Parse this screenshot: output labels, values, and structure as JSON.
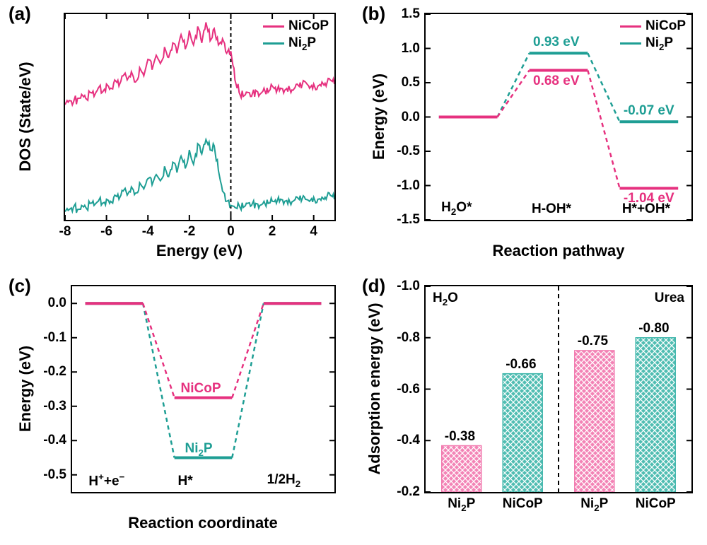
{
  "colors": {
    "nicop": "#e6317f",
    "ni2p": "#1e9e94",
    "axis": "#000000",
    "bg": "#ffffff",
    "nicop_fill": "#f27bb0",
    "ni2p_fill": "#44b8ad",
    "dashed": "#000000"
  },
  "fonts": {
    "panel_label_size": 26,
    "axis_title_size": 22,
    "tick_label_size": 19,
    "legend_size": 19,
    "value_label_size": 19
  },
  "panel_a": {
    "label": "(a)",
    "type": "line",
    "x_title": "Energy (eV)",
    "y_title": "DOS (State/eV)",
    "xlim": [
      -8,
      5
    ],
    "xticks": [
      -8,
      -6,
      -4,
      -2,
      0,
      2,
      4
    ],
    "fermi_line_x": 0,
    "legend": [
      {
        "label": "NiCoP",
        "color": "#e6317f"
      },
      {
        "label": "Ni₂P",
        "color": "#1e9e94"
      }
    ],
    "series": [
      {
        "name": "NiCoP",
        "color": "#e6317f",
        "baseline": 0.56,
        "x": [
          -8,
          -7.8,
          -7.6,
          -7.4,
          -7.2,
          -7,
          -6.8,
          -6.6,
          -6.4,
          -6.2,
          -6,
          -5.8,
          -5.6,
          -5.4,
          -5.2,
          -5,
          -4.8,
          -4.6,
          -4.4,
          -4.2,
          -4,
          -3.8,
          -3.6,
          -3.4,
          -3.2,
          -3,
          -2.8,
          -2.6,
          -2.4,
          -2.2,
          -2,
          -1.8,
          -1.6,
          -1.4,
          -1.2,
          -1,
          -0.8,
          -0.6,
          -0.4,
          -0.2,
          0,
          0.2,
          0.4,
          0.6,
          0.8,
          1,
          1.2,
          1.4,
          1.6,
          1.8,
          2,
          2.2,
          2.4,
          2.6,
          2.8,
          3,
          3.2,
          3.4,
          3.6,
          3.8,
          4,
          4.2,
          4.4,
          4.6,
          4.8,
          5
        ],
        "y": [
          0,
          0.02,
          0.01,
          0.03,
          0.05,
          0.03,
          0.06,
          0.04,
          0.08,
          0.06,
          0.1,
          0.08,
          0.12,
          0.09,
          0.14,
          0.12,
          0.16,
          0.11,
          0.18,
          0.14,
          0.22,
          0.17,
          0.24,
          0.2,
          0.28,
          0.23,
          0.3,
          0.25,
          0.34,
          0.27,
          0.36,
          0.29,
          0.38,
          0.3,
          0.4,
          0.31,
          0.37,
          0.29,
          0.32,
          0.25,
          0.26,
          0.12,
          0.06,
          0.04,
          0.06,
          0.04,
          0.07,
          0.05,
          0.08,
          0.06,
          0.09,
          0.06,
          0.08,
          0.07,
          0.09,
          0.07,
          0.1,
          0.08,
          0.11,
          0.08,
          0.1,
          0.09,
          0.11,
          0.09,
          0.12,
          0.1
        ]
      },
      {
        "name": "Ni2P",
        "color": "#1e9e94",
        "baseline": 0.04,
        "x": [
          -8,
          -7.8,
          -7.6,
          -7.4,
          -7.2,
          -7,
          -6.8,
          -6.6,
          -6.4,
          -6.2,
          -6,
          -5.8,
          -5.6,
          -5.4,
          -5.2,
          -5,
          -4.8,
          -4.6,
          -4.4,
          -4.2,
          -4,
          -3.8,
          -3.6,
          -3.4,
          -3.2,
          -3,
          -2.8,
          -2.6,
          -2.4,
          -2.2,
          -2,
          -1.8,
          -1.6,
          -1.4,
          -1.2,
          -1,
          -0.8,
          -0.6,
          -0.4,
          -0.2,
          0,
          0.2,
          0.4,
          0.6,
          0.8,
          1,
          1.2,
          1.4,
          1.6,
          1.8,
          2,
          2.2,
          2.4,
          2.6,
          2.8,
          3,
          3.2,
          3.4,
          3.6,
          3.8,
          4,
          4.2,
          4.4,
          4.6,
          4.8,
          5
        ],
        "y": [
          0,
          0.01,
          0.02,
          0.01,
          0.03,
          0.02,
          0.04,
          0.03,
          0.05,
          0.04,
          0.06,
          0.05,
          0.08,
          0.06,
          0.1,
          0.08,
          0.12,
          0.09,
          0.14,
          0.11,
          0.16,
          0.13,
          0.18,
          0.15,
          0.22,
          0.17,
          0.24,
          0.19,
          0.27,
          0.21,
          0.3,
          0.23,
          0.33,
          0.28,
          0.35,
          0.3,
          0.32,
          0.2,
          0.1,
          0.05,
          0.03,
          0.02,
          0.03,
          0.02,
          0.04,
          0.03,
          0.04,
          0.03,
          0.05,
          0.04,
          0.05,
          0.04,
          0.06,
          0.05,
          0.06,
          0.05,
          0.07,
          0.05,
          0.06,
          0.05,
          0.07,
          0.06,
          0.07,
          0.06,
          0.08,
          0.06
        ]
      }
    ]
  },
  "panel_b": {
    "label": "(b)",
    "type": "step-energy",
    "x_title": "Reaction pathway",
    "y_title": "Energy (eV)",
    "ylim": [
      -1.5,
      1.5
    ],
    "yticks": [
      -1.5,
      -1.0,
      -0.5,
      0.0,
      0.5,
      1.0,
      1.5
    ],
    "steps": [
      "H₂O*",
      "H-OH*",
      "H*+OH*"
    ],
    "legend": [
      {
        "label": "NiCoP",
        "color": "#e6317f"
      },
      {
        "label": "Ni₂P",
        "color": "#1e9e94"
      }
    ],
    "series": {
      "NiCoP": {
        "color": "#e6317f",
        "values": [
          0.0,
          0.68,
          -1.04
        ],
        "label_positions": [
          "",
          "below",
          "below"
        ]
      },
      "Ni2P": {
        "color": "#1e9e94",
        "values": [
          0.0,
          0.93,
          -0.07
        ],
        "label_positions": [
          "",
          "above",
          "above"
        ]
      }
    },
    "value_annotations": [
      {
        "text": "0.93 eV",
        "color": "#1e9e94",
        "step": 1,
        "pos": "above"
      },
      {
        "text": "0.68 eV",
        "color": "#e6317f",
        "step": 1,
        "pos": "below"
      },
      {
        "text": "-0.07 eV",
        "color": "#1e9e94",
        "step": 2,
        "pos": "above"
      },
      {
        "text": "-1.04 eV",
        "color": "#e6317f",
        "step": 2,
        "pos": "below"
      }
    ]
  },
  "panel_c": {
    "label": "(c)",
    "type": "step-energy",
    "x_title": "Reaction coordinate",
    "y_title": "Energy (eV)",
    "ylim": [
      -0.55,
      0.05
    ],
    "yticks": [
      -0.5,
      -0.4,
      -0.3,
      -0.2,
      -0.1,
      0.0
    ],
    "steps": [
      "H⁺+e⁻",
      "H*",
      "1/2H₂"
    ],
    "series": {
      "NiCoP": {
        "color": "#e6317f",
        "values": [
          0.0,
          -0.275,
          0.0
        ],
        "label": "NiCoP"
      },
      "Ni2P": {
        "color": "#1e9e94",
        "values": [
          0.0,
          -0.45,
          0.0
        ],
        "label": "Ni₂P"
      }
    }
  },
  "panel_d": {
    "label": "(d)",
    "type": "bar",
    "x_title": "",
    "y_title": "Adsorption energy (eV)",
    "ylim": [
      -1.0,
      -0.2
    ],
    "yticks": [
      -1.0,
      -0.8,
      -0.6,
      -0.4,
      -0.2
    ],
    "y_inverted": true,
    "groups": [
      {
        "title": "H₂O",
        "bars": [
          {
            "label": "Ni₂P",
            "value": -0.38,
            "color": "#f27bb0",
            "value_text": "-0.38"
          },
          {
            "label": "NiCoP",
            "value": -0.66,
            "color": "#44b8ad",
            "value_text": "-0.66"
          }
        ]
      },
      {
        "title": "Urea",
        "bars": [
          {
            "label": "Ni₂P",
            "value": -0.75,
            "color": "#f27bb0",
            "value_text": "-0.75"
          },
          {
            "label": "NiCoP",
            "value": -0.8,
            "color": "#44b8ad",
            "value_text": "-0.80"
          }
        ]
      }
    ],
    "divider_x_ratio": 0.5
  }
}
